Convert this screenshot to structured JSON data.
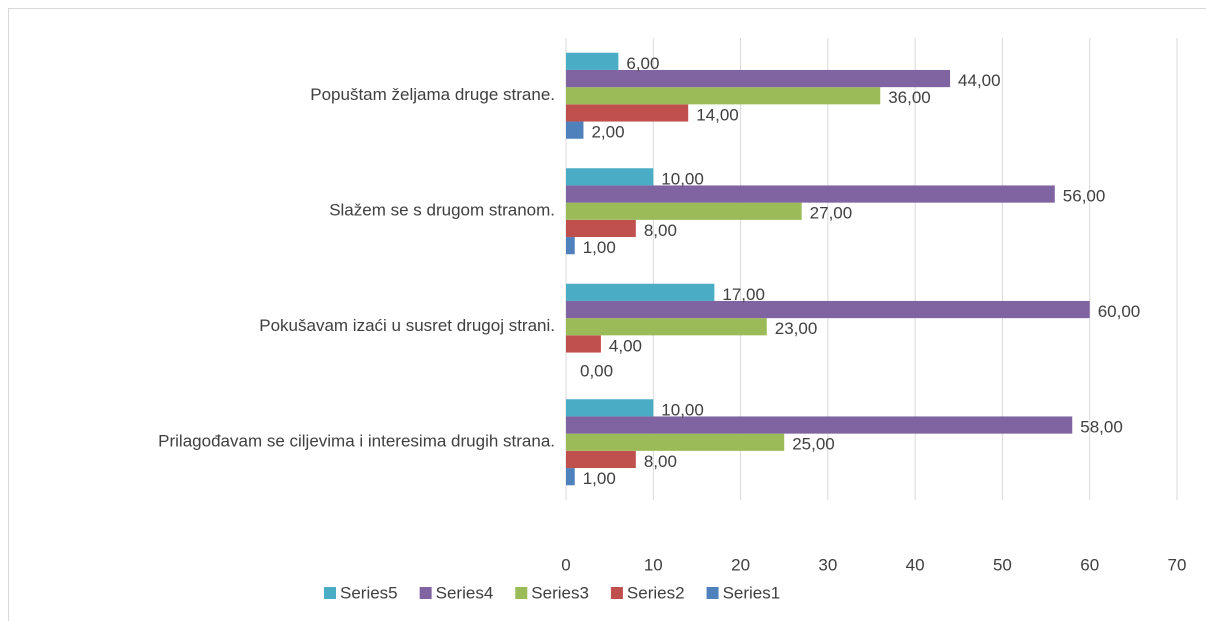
{
  "chart_data": {
    "type": "hbar",
    "categories": [
      "Prilagođavam se ciljevima i interesima drugih strana.",
      "Pokušavam izaći u susret drugoj strani.",
      "Slažem se s drugom stranom.",
      "Popuštam željama druge strane."
    ],
    "series": [
      {
        "name": "Series1",
        "color": "#4f81bd",
        "values": [
          1,
          0,
          1,
          2
        ],
        "value_labels": [
          "1,00",
          "0,00",
          "1,00",
          "2,00"
        ]
      },
      {
        "name": "Series2",
        "color": "#c0504d",
        "values": [
          8,
          4,
          8,
          14
        ],
        "value_labels": [
          "8,00",
          "4,00",
          "8,00",
          "14,00"
        ]
      },
      {
        "name": "Series3",
        "color": "#9bbb59",
        "values": [
          25,
          23,
          27,
          36
        ],
        "value_labels": [
          "25,00",
          "23,00",
          "27,00",
          "36,00"
        ]
      },
      {
        "name": "Series4",
        "color": "#8064a2",
        "values": [
          58,
          60,
          56,
          44
        ],
        "value_labels": [
          "58,00",
          "60,00",
          "56,00",
          "44,00"
        ]
      },
      {
        "name": "Series5",
        "color": "#4bacc6",
        "values": [
          10,
          17,
          10,
          6
        ],
        "value_labels": [
          "10,00",
          "17,00",
          "10,00",
          "6,00"
        ]
      }
    ],
    "xlim": [
      0,
      70
    ],
    "xticks": [
      0,
      10,
      20,
      30,
      40,
      50,
      60,
      70
    ],
    "grid": true,
    "legend": "bottom"
  }
}
